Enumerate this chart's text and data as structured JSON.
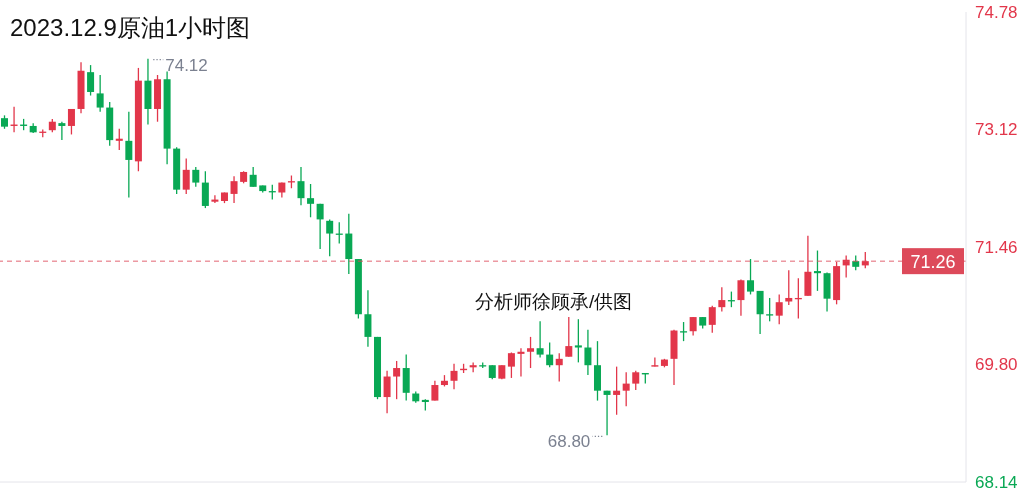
{
  "chart_data": {
    "type": "candlestick",
    "title": "2023.12.9原油1小时图",
    "annotations": [
      "74.12",
      "68.80",
      "分析师徐顾承/供图"
    ],
    "categories": [
      null,
      null,
      null,
      null,
      null,
      null,
      null,
      null,
      null,
      null,
      null,
      null,
      null,
      null,
      null,
      null,
      null,
      null,
      null,
      null,
      null,
      null,
      null,
      null,
      null,
      null,
      null,
      null,
      null,
      null,
      null,
      null,
      null,
      null,
      null,
      null,
      null,
      null,
      null,
      null,
      null,
      null,
      null,
      null,
      null,
      null,
      null,
      null,
      null,
      null,
      null,
      null,
      null,
      null,
      null,
      null,
      null,
      null,
      null,
      null,
      null,
      null,
      null,
      null,
      null,
      null,
      null,
      null,
      null,
      null,
      null,
      null,
      null,
      null,
      null,
      null,
      null,
      null,
      null,
      null,
      null,
      null,
      null,
      null,
      null,
      null,
      null,
      null,
      null,
      null,
      null,
      null,
      null,
      null,
      null,
      null,
      null,
      null,
      null,
      null,
      null
    ],
    "ohlc": [
      [
        73.28,
        73.32,
        73.13,
        73.16
      ],
      [
        73.17,
        73.44,
        73.08,
        73.19
      ],
      [
        73.19,
        73.27,
        73.11,
        73.17
      ],
      [
        73.17,
        73.21,
        73.07,
        73.08
      ],
      [
        73.08,
        73.12,
        73.01,
        73.09
      ],
      [
        73.11,
        73.27,
        73.08,
        73.23
      ],
      [
        73.21,
        73.23,
        72.97,
        73.17
      ],
      [
        73.17,
        73.41,
        73.05,
        73.41
      ],
      [
        73.41,
        74.07,
        73.35,
        73.95
      ],
      [
        73.93,
        74.03,
        73.6,
        73.65
      ],
      [
        73.63,
        73.89,
        73.37,
        73.43
      ],
      [
        73.43,
        73.51,
        72.89,
        72.97
      ],
      [
        72.96,
        73.13,
        72.83,
        72.99
      ],
      [
        72.96,
        73.37,
        72.16,
        72.69
      ],
      [
        72.67,
        73.99,
        72.53,
        73.81
      ],
      [
        73.81,
        74.12,
        73.19,
        73.41
      ],
      [
        73.41,
        73.89,
        73.23,
        73.83
      ],
      [
        73.83,
        73.94,
        72.63,
        72.85
      ],
      [
        72.85,
        72.87,
        72.21,
        72.27
      ],
      [
        72.27,
        72.71,
        72.21,
        72.55
      ],
      [
        72.55,
        72.59,
        72.31,
        72.37
      ],
      [
        72.37,
        72.53,
        72.01,
        72.04
      ],
      [
        72.1,
        72.19,
        72.08,
        72.13
      ],
      [
        72.11,
        72.23,
        72.08,
        72.23
      ],
      [
        72.21,
        72.46,
        72.08,
        72.39
      ],
      [
        72.38,
        72.53,
        72.36,
        72.52
      ],
      [
        72.48,
        72.59,
        72.31,
        72.31
      ],
      [
        72.33,
        72.33,
        72.23,
        72.25
      ],
      [
        72.25,
        72.34,
        72.13,
        72.24
      ],
      [
        72.23,
        72.37,
        72.16,
        72.37
      ],
      [
        72.38,
        72.47,
        72.29,
        72.39
      ],
      [
        72.39,
        72.59,
        72.05,
        72.15
      ],
      [
        72.15,
        72.35,
        71.88,
        72.07
      ],
      [
        72.07,
        72.07,
        71.43,
        71.85
      ],
      [
        71.83,
        71.85,
        71.33,
        71.65
      ],
      [
        71.65,
        71.81,
        71.51,
        71.64
      ],
      [
        71.65,
        71.93,
        71.08,
        71.29
      ],
      [
        71.29,
        71.29,
        70.45,
        70.51
      ],
      [
        70.51,
        70.85,
        70.05,
        70.19
      ],
      [
        70.19,
        70.19,
        69.31,
        69.34
      ],
      [
        69.34,
        69.71,
        69.11,
        69.63
      ],
      [
        69.63,
        69.85,
        69.31,
        69.75
      ],
      [
        69.75,
        69.94,
        69.29,
        69.4
      ],
      [
        69.39,
        69.42,
        69.26,
        69.28
      ],
      [
        69.3,
        69.31,
        69.15,
        69.27
      ],
      [
        69.29,
        69.57,
        69.29,
        69.51
      ],
      [
        69.51,
        69.65,
        69.49,
        69.57
      ],
      [
        69.57,
        69.81,
        69.45,
        69.71
      ],
      [
        69.72,
        69.81,
        69.68,
        69.74
      ],
      [
        69.76,
        69.83,
        69.69,
        69.79
      ],
      [
        69.79,
        69.83,
        69.75,
        69.78
      ],
      [
        69.79,
        69.79,
        69.59,
        69.61
      ],
      [
        69.6,
        69.79,
        69.59,
        69.79
      ],
      [
        69.77,
        69.97,
        69.61,
        69.96
      ],
      [
        69.95,
        70.03,
        69.63,
        69.98
      ],
      [
        69.98,
        70.19,
        69.75,
        70.03
      ],
      [
        70.03,
        70.41,
        69.9,
        69.94
      ],
      [
        69.94,
        70.11,
        69.76,
        69.79
      ],
      [
        69.79,
        69.96,
        69.56,
        69.88
      ],
      [
        69.91,
        70.47,
        69.91,
        70.06
      ],
      [
        70.07,
        70.44,
        69.83,
        70.04
      ],
      [
        70.04,
        70.29,
        69.65,
        69.79
      ],
      [
        69.79,
        70.13,
        69.29,
        69.43
      ],
      [
        69.43,
        69.43,
        68.8,
        69.37
      ],
      [
        69.37,
        69.77,
        69.09,
        69.43
      ],
      [
        69.43,
        69.69,
        69.21,
        69.53
      ],
      [
        69.53,
        69.71,
        69.44,
        69.69
      ],
      [
        69.68,
        69.68,
        69.53,
        69.66
      ],
      [
        69.77,
        69.9,
        69.77,
        69.79
      ],
      [
        69.78,
        69.88,
        69.76,
        69.87
      ],
      [
        69.88,
        70.29,
        69.51,
        70.28
      ],
      [
        70.27,
        70.4,
        70.13,
        70.26
      ],
      [
        70.27,
        70.47,
        70.21,
        70.47
      ],
      [
        70.47,
        70.47,
        70.31,
        70.35
      ],
      [
        70.36,
        70.63,
        70.25,
        70.61
      ],
      [
        70.61,
        70.89,
        70.55,
        70.71
      ],
      [
        70.71,
        70.83,
        70.61,
        70.7
      ],
      [
        70.71,
        71.0,
        70.49,
        70.99
      ],
      [
        70.99,
        71.29,
        70.79,
        70.83
      ],
      [
        70.84,
        70.84,
        70.23,
        70.51
      ],
      [
        70.51,
        70.74,
        70.41,
        70.5
      ],
      [
        70.49,
        70.79,
        70.37,
        70.68
      ],
      [
        70.69,
        71.13,
        70.64,
        70.74
      ],
      [
        70.73,
        71.02,
        70.45,
        70.74
      ],
      [
        70.77,
        71.62,
        70.77,
        71.11
      ],
      [
        71.12,
        71.41,
        70.84,
        71.09
      ],
      [
        71.09,
        71.1,
        70.55,
        70.73
      ],
      [
        70.71,
        71.25,
        70.65,
        71.19
      ],
      [
        71.2,
        71.34,
        71.03,
        71.28
      ],
      [
        71.26,
        71.34,
        71.13,
        71.18
      ],
      [
        71.2,
        71.39,
        71.16,
        71.26
      ],
      null,
      null,
      null,
      null,
      null,
      null,
      null,
      null,
      null,
      null
    ],
    "colors": [
      "#09a854",
      "#e2364a",
      "#09a854",
      "#09a854",
      "#e2364a",
      "#e2364a",
      "#09a854",
      "#e2364a",
      "#e2364a",
      "#09a854",
      "#09a854",
      "#09a854",
      "#e2364a",
      "#09a854",
      "#e2364a",
      "#09a854",
      "#e2364a",
      "#09a854",
      "#09a854",
      "#e2364a",
      "#09a854",
      "#09a854",
      "#e2364a",
      "#e2364a",
      "#e2364a",
      "#e2364a",
      "#09a854",
      "#09a854",
      "#09a854",
      "#e2364a",
      "#e2364a",
      "#09a854",
      "#09a854",
      "#09a854",
      "#09a854",
      "#09a854",
      "#09a854",
      "#09a854",
      "#09a854",
      "#09a854",
      "#e2364a",
      "#e2364a",
      "#09a854",
      "#09a854",
      "#09a854",
      "#e2364a",
      "#e2364a",
      "#e2364a",
      "#e2364a",
      "#e2364a",
      "#09a854",
      "#09a854",
      "#e2364a",
      "#e2364a",
      "#e2364a",
      "#e2364a",
      "#09a854",
      "#09a854",
      "#e2364a",
      "#e2364a",
      "#09a854",
      "#09a854",
      "#09a854",
      "#09a854",
      "#e2364a",
      "#e2364a",
      "#e2364a",
      "#09a854",
      "#e2364a",
      "#e2364a",
      "#e2364a",
      "#09a854",
      "#e2364a",
      "#09a854",
      "#e2364a",
      "#e2364a",
      "#09a854",
      "#e2364a",
      "#09a854",
      "#09a854",
      "#09a854",
      "#e2364a",
      "#e2364a",
      "#e2364a",
      "#e2364a",
      "#09a854",
      "#09a854",
      "#e2364a",
      "#e2364a",
      "#09a854",
      "#e2364a",
      null,
      null,
      null,
      null,
      null,
      null,
      null,
      null,
      null,
      null
    ],
    "ylim": [
      68.14,
      74.78
    ],
    "yticks": [
      68.14,
      {
        "value": 69.8,
        "label": "69.80"
      },
      71.46,
      73.12,
      74.78
    ],
    "ref_lines": [
      {
        "axis": "y",
        "value": 71.26,
        "label": "71.26",
        "color": "#dd4a5a",
        "line_style": "dashed"
      }
    ],
    "tick_labels": "y"
  }
}
